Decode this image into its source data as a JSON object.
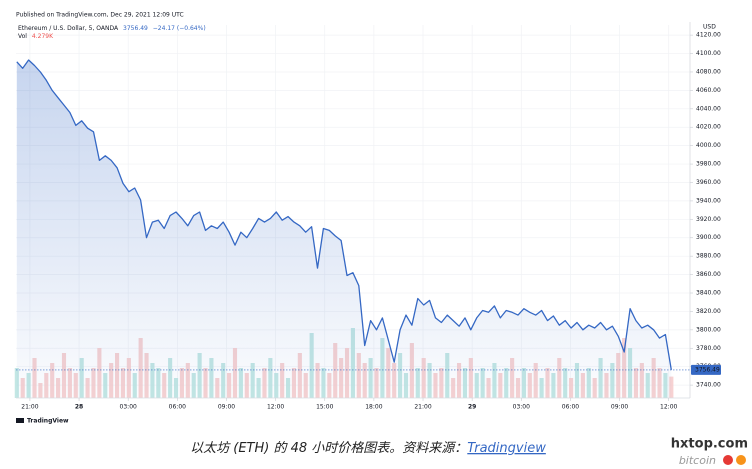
{
  "chart_data": {
    "type": "line",
    "publisher": "Published on TradingView.com, Dec 29, 2021 12:09 UTC",
    "change": "−24.17 (−0.64%)",
    "currency": "USD",
    "x": [
      20.2,
      20.56,
      20.92,
      21.28,
      21.64,
      22,
      22.36,
      22.72,
      23.08,
      23.44,
      23.8,
      24.16,
      24.52,
      24.88,
      25.24,
      25.6,
      25.96,
      26.32,
      26.68,
      27.04,
      27.4,
      27.76,
      28.12,
      28.48,
      28.84,
      29.2,
      29.56,
      29.92,
      30.28,
      30.64,
      31,
      31.36,
      31.72,
      32.08,
      32.44,
      32.8,
      33.16,
      33.52,
      33.88,
      34.24,
      34.6,
      34.96,
      35.32,
      35.68,
      36.04,
      36.4,
      36.76,
      37.12,
      37.48,
      37.84,
      38.2,
      38.56,
      38.92,
      39.28,
      39.64,
      40,
      40.36,
      40.72,
      41.08,
      41.44,
      41.8,
      42.16,
      42.52,
      42.88,
      43.24,
      43.6,
      43.96,
      44.32,
      44.68,
      45.04,
      45.4,
      45.76,
      46.12,
      46.48,
      46.84,
      47.2,
      47.56,
      47.92,
      48.28,
      48.64,
      49,
      49.36,
      49.72,
      50.08,
      50.44,
      50.8,
      51.16,
      51.52,
      51.88,
      52.24,
      52.6,
      52.96,
      53.32,
      53.68,
      54.04,
      54.4,
      54.76,
      55.12,
      55.48,
      55.84,
      56.2,
      56.56,
      56.92,
      57.28,
      57.64,
      58,
      58.36,
      58.72,
      59.08,
      59.44,
      59.8,
      60.16
    ],
    "series": [
      {
        "name": "Ethereum / U.S. Dollar, 5, OANDA",
        "color": "#3568c4",
        "values": [
          4091,
          4084,
          4093,
          4087,
          4080,
          4071,
          4060,
          4052,
          4044,
          4036,
          4022,
          4027,
          4019,
          4015,
          3984,
          3989,
          3984,
          3976,
          3959,
          3950,
          3954,
          3941,
          3900,
          3917,
          3919,
          3910,
          3924,
          3928,
          3921,
          3913,
          3924,
          3928,
          3908,
          3913,
          3910,
          3917,
          3906,
          3892,
          3906,
          3900,
          3910,
          3921,
          3917,
          3921,
          3928,
          3919,
          3923,
          3917,
          3913,
          3906,
          3912,
          3867,
          3910,
          3908,
          3902,
          3897,
          3859,
          3862,
          3848,
          3783,
          3810,
          3800,
          3813,
          3789,
          3765,
          3800,
          3816,
          3805,
          3834,
          3827,
          3832,
          3813,
          3808,
          3816,
          3810,
          3804,
          3813,
          3800,
          3813,
          3821,
          3819,
          3826,
          3813,
          3821,
          3819,
          3816,
          3823,
          3819,
          3816,
          3821,
          3810,
          3815,
          3805,
          3810,
          3802,
          3808,
          3800,
          3805,
          3802,
          3808,
          3800,
          3804,
          3793,
          3776,
          3823,
          3810,
          3802,
          3805,
          3800,
          3791,
          3795,
          3756.49
        ]
      }
    ],
    "volume": {
      "name": "Vol",
      "value_label": "4.279K",
      "colors": [
        "#b9e3df",
        "#f6caca"
      ],
      "values": [
        6,
        4,
        5,
        8,
        3,
        5,
        7,
        4,
        9,
        6,
        5,
        8,
        4,
        6,
        10,
        5,
        7,
        9,
        6,
        8,
        5,
        12,
        9,
        7,
        6,
        5,
        8,
        4,
        6,
        7,
        5,
        9,
        6,
        8,
        4,
        7,
        5,
        10,
        6,
        5,
        7,
        4,
        6,
        8,
        5,
        7,
        4,
        6,
        9,
        5,
        13,
        7,
        6,
        5,
        11,
        8,
        10,
        14,
        9,
        7,
        8,
        6,
        12,
        10,
        7,
        9,
        5,
        11,
        6,
        8,
        7,
        5,
        6,
        9,
        4,
        7,
        6,
        8,
        5,
        6,
        4,
        7,
        5,
        6,
        8,
        4,
        6,
        5,
        7,
        4,
        6,
        5,
        8,
        6,
        4,
        7,
        5,
        6,
        4,
        8,
        5,
        7,
        9,
        12,
        10,
        6,
        7,
        5,
        8,
        6,
        5,
        4.279
      ]
    },
    "xlim": [
      20.15,
      61.3
    ],
    "xticks": [
      {
        "value": 21,
        "label": "21:00"
      },
      {
        "value": 24,
        "label": "28"
      },
      {
        "value": 27,
        "label": "03:00"
      },
      {
        "value": 30,
        "label": "06:00"
      },
      {
        "value": 33,
        "label": "09:00"
      },
      {
        "value": 36,
        "label": "12:00"
      },
      {
        "value": 39,
        "label": "15:00"
      },
      {
        "value": 42,
        "label": "18:00"
      },
      {
        "value": 45,
        "label": "21:00"
      },
      {
        "value": 48,
        "label": "29"
      },
      {
        "value": 51,
        "label": "03:00"
      },
      {
        "value": 54,
        "label": "06:00"
      },
      {
        "value": 57,
        "label": "09:00"
      },
      {
        "value": 60,
        "label": "12:00"
      }
    ],
    "ylim": [
      3726,
      4131
    ],
    "yticks": [
      {
        "value": 3740,
        "label": "3740.00"
      },
      {
        "value": 3760,
        "label": "3760.00"
      },
      {
        "value": 3780,
        "label": "3780.00"
      },
      {
        "value": 3800,
        "label": "3800.00"
      },
      {
        "value": 3820,
        "label": "3820.00"
      },
      {
        "value": 3840,
        "label": "3840.00"
      },
      {
        "value": 3860,
        "label": "3860.00"
      },
      {
        "value": 3880,
        "label": "3880.00"
      },
      {
        "value": 3900,
        "label": "3900.00"
      },
      {
        "value": 3920,
        "label": "3920.00"
      },
      {
        "value": 3940,
        "label": "3940.00"
      },
      {
        "value": 3960,
        "label": "3960.00"
      },
      {
        "value": 3980,
        "label": "3980.00"
      },
      {
        "value": 4000,
        "label": "4000.00"
      },
      {
        "value": 4020,
        "label": "4020.00"
      },
      {
        "value": 4040,
        "label": "4040.00"
      },
      {
        "value": 4060,
        "label": "4060.00"
      },
      {
        "value": 4080,
        "label": "4080.00"
      },
      {
        "value": 4100,
        "label": "4100.00"
      },
      {
        "value": 4120,
        "label": "4120.00"
      }
    ],
    "grid": true,
    "logo": "TradingView",
    "caption": "以太坊 (ETH) 的 48 小时价格图表。资料来源：",
    "caption_link": "Tradingview",
    "watermark": [
      "hxtop.com",
      "bitcoin"
    ]
  }
}
